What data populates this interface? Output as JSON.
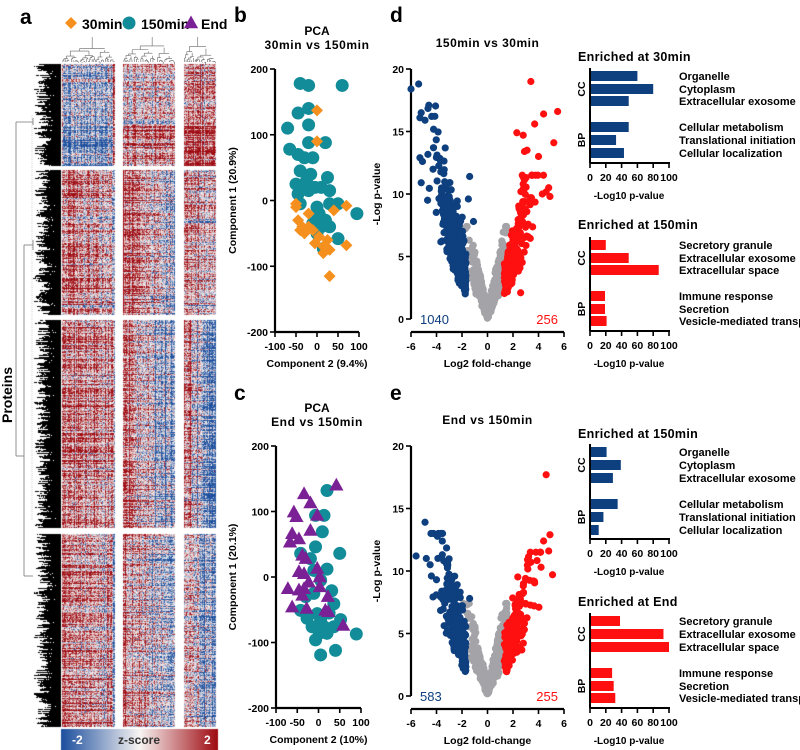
{
  "panel_labels": {
    "a": "a",
    "b": "b",
    "c": "c",
    "d": "d",
    "e": "e"
  },
  "legend": [
    {
      "label": "30min",
      "shape": "diamond",
      "color": "#f5901e"
    },
    {
      "label": "150min",
      "shape": "circle",
      "color": "#138c99"
    },
    {
      "label": "End",
      "shape": "triangle",
      "color": "#7b2196"
    }
  ],
  "colors": {
    "blue": "#0e3f7e",
    "red": "#ff1010",
    "gray": "#a3a3a8",
    "heat_low": "#1d4f9e",
    "heat_mid": "#f7f4f2",
    "heat_high": "#9e0b12"
  },
  "chart_data": [
    {
      "id": "heatmap",
      "type": "heatmap",
      "ylabel": "Proteins",
      "colorbar": {
        "min": -2,
        "max": 2,
        "min_label": "-2",
        "title": "z-score",
        "max_label": "2"
      },
      "column_groups": [
        "30min",
        "150min",
        "End"
      ],
      "row_clusters": 4,
      "cluster_group_mean_zscore": [
        [
          {
            "bias": -0.5,
            "trend": 0
          },
          {
            "bias": 0.1,
            "trend": 0
          },
          {
            "bias": 0.6,
            "trend": 0
          }
        ],
        [
          {
            "bias": 0.5,
            "trend": -0.3
          },
          {
            "bias": 0.3,
            "trend": -0.8
          },
          {
            "bias": 0.3,
            "trend": -0.6
          }
        ],
        [
          {
            "bias": 0.7,
            "trend": -0.3
          },
          {
            "bias": 0.0,
            "trend": -0.9
          },
          {
            "bias": -0.3,
            "trend": -0.9
          }
        ],
        [
          {
            "bias": 0.5,
            "trend": -0.2
          },
          {
            "bias": 0.0,
            "trend": -0.8
          },
          {
            "bias": -0.3,
            "trend": -0.6
          }
        ]
      ]
    },
    {
      "id": "pca-b",
      "type": "scatter",
      "title": [
        "PCA",
        "30min vs 150min"
      ],
      "xlabel": "Component 2 (9.4%)",
      "ylabel": "Component 1 (20.9%)",
      "xlim": [
        -100,
        100
      ],
      "ylim": [
        -200,
        200
      ],
      "xticks": [
        -100,
        -50,
        0,
        50,
        100
      ],
      "yticks": [
        -200,
        -100,
        0,
        100,
        200
      ],
      "series": [
        {
          "name": "150min",
          "shape": "circle",
          "color": "#138c99",
          "points": [
            [
              -40,
              178
            ],
            [
              -20,
              175
            ],
            [
              60,
              175
            ],
            [
              -20,
              140
            ],
            [
              -45,
              133
            ],
            [
              -70,
              110
            ],
            [
              -20,
              115
            ],
            [
              -20,
              88
            ],
            [
              20,
              88
            ],
            [
              -65,
              78
            ],
            [
              -45,
              70
            ],
            [
              -30,
              65
            ],
            [
              -10,
              65
            ],
            [
              -40,
              45
            ],
            [
              -15,
              40
            ],
            [
              25,
              35
            ],
            [
              -35,
              20
            ],
            [
              -20,
              15
            ],
            [
              -5,
              20
            ],
            [
              10,
              20
            ],
            [
              30,
              15
            ],
            [
              -45,
              10
            ],
            [
              -40,
              -5
            ],
            [
              0,
              -10
            ],
            [
              30,
              -5
            ],
            [
              50,
              -5
            ],
            [
              95,
              -20
            ],
            [
              0,
              -30
            ],
            [
              20,
              -30
            ],
            [
              10,
              -40
            ],
            [
              30,
              -40
            ],
            [
              0,
              -50
            ],
            [
              50,
              -58
            ],
            [
              15,
              -73
            ],
            [
              -10,
              -35
            ],
            [
              5,
              -20
            ],
            [
              -25,
              30
            ],
            [
              -50,
              25
            ]
          ]
        },
        {
          "name": "30min",
          "shape": "diamond",
          "color": "#f5901e",
          "points": [
            [
              0,
              137
            ],
            [
              0,
              90
            ],
            [
              -50,
              -5
            ],
            [
              -50,
              -10
            ],
            [
              -20,
              -20
            ],
            [
              -45,
              -30
            ],
            [
              -35,
              -40
            ],
            [
              -30,
              -50
            ],
            [
              -20,
              -40
            ],
            [
              -10,
              -45
            ],
            [
              5,
              -55
            ],
            [
              -5,
              -65
            ],
            [
              15,
              -70
            ],
            [
              30,
              -75
            ],
            [
              15,
              -80
            ],
            [
              70,
              -68
            ],
            [
              70,
              -8
            ],
            [
              40,
              -15
            ],
            [
              30,
              -115
            ],
            [
              -40,
              -45
            ],
            [
              25,
              -60
            ]
          ]
        }
      ]
    },
    {
      "id": "pca-c",
      "type": "scatter",
      "title": [
        "PCA",
        "End vs 150min"
      ],
      "xlabel": "Component 2 (10%)",
      "ylabel": "Component 1 (20.1%)",
      "xlim": [
        -100,
        100
      ],
      "ylim": [
        -200,
        200
      ],
      "xticks": [
        -100,
        -50,
        0,
        50,
        100
      ],
      "yticks": [
        -200,
        -100,
        0,
        100,
        200
      ],
      "series": [
        {
          "name": "150min",
          "shape": "circle",
          "color": "#138c99",
          "points": [
            [
              20,
              132
            ],
            [
              13,
              94
            ],
            [
              -7,
              94
            ],
            [
              9,
              69
            ],
            [
              -7,
              46
            ],
            [
              50,
              36
            ],
            [
              -42,
              36
            ],
            [
              -19,
              28
            ],
            [
              20,
              12
            ],
            [
              -11,
              10
            ],
            [
              5,
              -5
            ],
            [
              31,
              -21
            ],
            [
              -11,
              -25
            ],
            [
              36,
              -41
            ],
            [
              -42,
              -51
            ],
            [
              -3,
              -56
            ],
            [
              5,
              -66
            ],
            [
              52,
              -65
            ],
            [
              -15,
              -76
            ],
            [
              13,
              -76
            ],
            [
              36,
              -76
            ],
            [
              2,
              -86
            ],
            [
              -7,
              -96
            ],
            [
              89,
              -87
            ],
            [
              40,
              -112
            ],
            [
              5,
              -119
            ],
            [
              20,
              -86
            ],
            [
              -27,
              -63
            ],
            [
              -30,
              -30
            ],
            [
              25,
              -55
            ]
          ]
        },
        {
          "name": "End",
          "shape": "triangle",
          "color": "#7b2196",
          "points": [
            [
              42,
              140
            ],
            [
              -34,
              127
            ],
            [
              -19,
              113
            ],
            [
              -58,
              99
            ],
            [
              -52,
              92
            ],
            [
              -3,
              94
            ],
            [
              -19,
              71
            ],
            [
              -62,
              66
            ],
            [
              -46,
              58
            ],
            [
              -67,
              53
            ],
            [
              -38,
              33
            ],
            [
              -30,
              28
            ],
            [
              -46,
              8
            ],
            [
              -34,
              5
            ],
            [
              -3,
              13
            ],
            [
              3,
              0
            ],
            [
              -23,
              -8
            ],
            [
              -72,
              -18
            ],
            [
              -46,
              -20
            ],
            [
              -34,
              -18
            ],
            [
              3,
              -15
            ],
            [
              -38,
              -28
            ],
            [
              22,
              -30
            ],
            [
              -62,
              -46
            ],
            [
              -28,
              -48
            ],
            [
              16,
              -51
            ],
            [
              23,
              -53
            ],
            [
              58,
              -74
            ]
          ]
        }
      ]
    },
    {
      "id": "volcano-d",
      "type": "scatter",
      "title": "150min vs 30min",
      "xlabel": "Log2 fold-change",
      "ylabel": "-Log p-value",
      "xlim": [
        -6,
        6
      ],
      "ylim": [
        0,
        20
      ],
      "xticks": [
        -6,
        -4,
        -2,
        0,
        2,
        4,
        6
      ],
      "yticks": [
        0,
        5,
        10,
        15,
        20
      ],
      "down_count": "1040",
      "up_count": "256",
      "spread": {
        "down_max_y": 19,
        "up_max_y": 19
      },
      "outliers_down": [
        [
          -6,
          18.4
        ],
        [
          -5.4,
          18.8
        ],
        [
          -4.6,
          17.1
        ],
        [
          -5.2,
          16.5
        ],
        [
          -5.3,
          16.1
        ],
        [
          -4.9,
          15.9
        ],
        [
          -5.3,
          12.9
        ],
        [
          -5.1,
          12.6
        ],
        [
          -5.2,
          10.9
        ],
        [
          -4.7,
          9.5
        ],
        [
          -1.4,
          11.4
        ],
        [
          -1.5,
          9.6
        ],
        [
          -1.1,
          7.8
        ]
      ],
      "outliers_up": [
        [
          3.4,
          19
        ],
        [
          5.5,
          16.6
        ],
        [
          4.4,
          16.4
        ],
        [
          3.7,
          15.6
        ],
        [
          2.3,
          14.9
        ],
        [
          2.8,
          14.7
        ],
        [
          5.2,
          14.1
        ],
        [
          2.9,
          13.4
        ],
        [
          3.1,
          13.5
        ],
        [
          4,
          13
        ],
        [
          2.8,
          10.8
        ],
        [
          4.8,
          10.5
        ],
        [
          4.3,
          10
        ],
        [
          4.9,
          9.8
        ],
        [
          2.6,
          2.1
        ]
      ]
    },
    {
      "id": "volcano-e",
      "type": "scatter",
      "title": "End vs 150min",
      "xlabel": "Log2 fold-change",
      "ylabel": "-Log p-value",
      "xlim": [
        -6,
        6
      ],
      "ylim": [
        0,
        20
      ],
      "xticks": [
        -6,
        -4,
        -2,
        0,
        2,
        4,
        6
      ],
      "yticks": [
        0,
        5,
        10,
        15,
        20
      ],
      "down_count": "583",
      "up_count": "255",
      "spread": {
        "down_max_y": 14,
        "up_max_y": 18
      },
      "outliers_down": [
        [
          -4.9,
          13.9
        ],
        [
          -5.6,
          11.2
        ],
        [
          -4.8,
          11
        ],
        [
          -4.5,
          10.5
        ],
        [
          -4.4,
          9.6
        ],
        [
          -4.0,
          9.3
        ],
        [
          -1.4,
          7.8
        ]
      ],
      "outliers_up": [
        [
          4.6,
          17.7
        ],
        [
          4.9,
          12.9
        ],
        [
          4.4,
          12.4
        ],
        [
          4.8,
          11.6
        ],
        [
          3.4,
          10.7
        ],
        [
          4.2,
          10.3
        ],
        [
          5.1,
          9.7
        ],
        [
          3.6,
          9.2
        ]
      ]
    },
    {
      "id": "go-d-30min",
      "type": "bar",
      "title": "Enriched at 30min",
      "color": "#0e3f7e",
      "xlabel": "-Log10 p-value",
      "xlim": [
        0,
        100
      ],
      "xticks": [
        0,
        20,
        40,
        60,
        80,
        100
      ],
      "groups": [
        {
          "name": "CC",
          "categories": [
            "Organelle",
            "Cytoplasm",
            "Extracellular exosome"
          ],
          "values": [
            60,
            80,
            49
          ]
        },
        {
          "name": "BP",
          "categories": [
            "Cellular metabolism",
            "Translational initiation",
            "Cellular localization"
          ],
          "values": [
            49,
            33,
            43
          ]
        }
      ]
    },
    {
      "id": "go-d-150min",
      "type": "bar",
      "title": "Enriched at 150min",
      "color": "#ff1010",
      "xlabel": "-Log10 p-value",
      "xlim": [
        0,
        100
      ],
      "xticks": [
        0,
        20,
        40,
        60,
        80,
        100
      ],
      "groups": [
        {
          "name": "CC",
          "categories": [
            "Secretory granule",
            "Extracellular exosome",
            "Extracellular space"
          ],
          "values": [
            20,
            49,
            87
          ]
        },
        {
          "name": "BP",
          "categories": [
            "Immune response",
            "Secretion",
            "Vesicle-mediated transport"
          ],
          "values": [
            19,
            19,
            21
          ]
        }
      ]
    },
    {
      "id": "go-e-150min",
      "type": "bar",
      "title": "Enriched at 150min",
      "color": "#0e3f7e",
      "xlabel": "-Log10 p-value",
      "xlim": [
        0,
        100
      ],
      "xticks": [
        0,
        20,
        40,
        60,
        80,
        100
      ],
      "groups": [
        {
          "name": "CC",
          "categories": [
            "Organelle",
            "Cytoplasm",
            "Extracellular exosome"
          ],
          "values": [
            21,
            39,
            29
          ]
        },
        {
          "name": "BP",
          "categories": [
            "Cellular metabolism",
            "Translational initiation",
            "Cellular localization"
          ],
          "values": [
            35,
            17,
            11
          ]
        }
      ]
    },
    {
      "id": "go-e-end",
      "type": "bar",
      "title": "Enriched at End",
      "color": "#ff1010",
      "xlabel": "-Log10 p-value",
      "xlim": [
        0,
        100
      ],
      "xticks": [
        0,
        20,
        40,
        60,
        80,
        100
      ],
      "groups": [
        {
          "name": "CC",
          "categories": [
            "Secretory granule",
            "Extracellular exosome",
            "Extracellular space"
          ],
          "values": [
            38,
            93,
            100
          ]
        },
        {
          "name": "BP",
          "categories": [
            "Immune response",
            "Secretion",
            "Vesicle-mediated transport"
          ],
          "values": [
            28,
            30,
            32
          ]
        }
      ]
    }
  ]
}
